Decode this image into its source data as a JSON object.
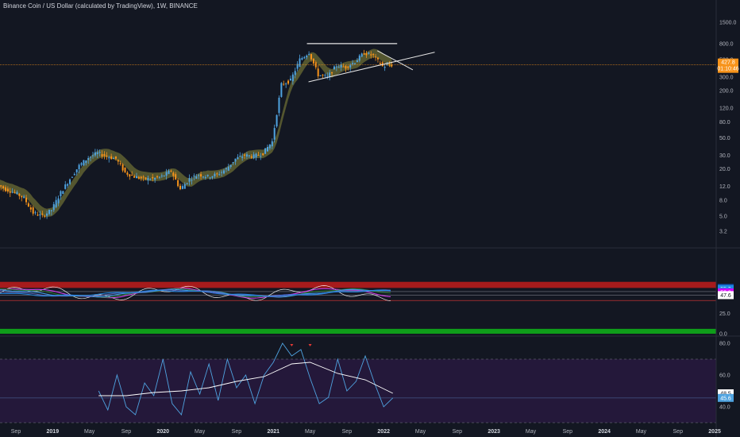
{
  "header": {
    "title": "Binance Coin / US Dollar (calculated by TradingView), 1W, BINANCE"
  },
  "colors": {
    "background": "#131722",
    "candle_up": "#4fa3e0",
    "candle_down": "#f7931a",
    "cloud": "#8a8a3a",
    "price_line": "#f7931a",
    "rsi_band_red": "#b71c1c",
    "rsi_band_green": "#0f9d1a",
    "lower_pane_bg": "#24183a"
  },
  "chart_data": [
    {
      "type": "line",
      "title": "Binance Coin / US Dollar (calculated by TradingView), 1W, BINANCE",
      "scale": "log",
      "ylim": [
        2.6,
        1500
      ],
      "y_ticks": [
        "1500.0",
        "800.0",
        "500.0",
        "300.0",
        "200.0",
        "120.0",
        "80.0",
        "50.0",
        "30.0",
        "20.0",
        "12.0",
        "8.0",
        "5.0",
        "3.2"
      ],
      "price_badges": [
        "427.8",
        "01:10:46"
      ],
      "last_price": 427.8,
      "x_ticks": [
        "Sep",
        "2019",
        "May",
        "Sep",
        "2020",
        "May",
        "Sep",
        "2021",
        "May",
        "Sep",
        "2022",
        "May",
        "Sep",
        "2023",
        "May",
        "Sep",
        "2024",
        "May",
        "Sep",
        "2025"
      ],
      "x_tick_dates": [
        "2018-09",
        "2019-01",
        "2019-05",
        "2019-09",
        "2020-01",
        "2020-05",
        "2020-09",
        "2021-01",
        "2021-05",
        "2021-09",
        "2022-01",
        "2022-05",
        "2022-09",
        "2023-01",
        "2023-05",
        "2023-09",
        "2024-01",
        "2024-05",
        "2024-09",
        "2025-01"
      ],
      "series": [
        {
          "x": [
            "2018-07",
            "2018-08",
            "2018-09",
            "2018-10",
            "2018-11",
            "2018-12",
            "2019-01",
            "2019-02",
            "2019-03",
            "2019-04",
            "2019-05",
            "2019-06",
            "2019-07",
            "2019-08",
            "2019-09",
            "2019-10",
            "2019-11",
            "2019-12",
            "2020-01",
            "2020-02",
            "2020-03",
            "2020-04",
            "2020-05",
            "2020-06",
            "2020-07",
            "2020-08",
            "2020-09",
            "2020-10",
            "2020-11",
            "2020-12",
            "2021-01",
            "2021-02",
            "2021-03",
            "2021-04",
            "2021-05",
            "2021-06",
            "2021-07",
            "2021-08",
            "2021-09",
            "2021-10",
            "2021-11",
            "2021-12",
            "2022-01",
            "2022-02"
          ],
          "values": [
            13,
            11,
            10,
            8.5,
            5.5,
            5,
            6,
            10,
            15,
            22,
            28,
            32,
            29,
            27,
            18,
            16,
            15,
            15,
            16,
            19,
            11,
            15,
            17,
            16,
            17,
            20,
            27,
            30,
            29,
            32,
            45,
            240,
            270,
            500,
            620,
            320,
            300,
            420,
            400,
            470,
            610,
            560,
            410,
            427.8
          ]
        }
      ]
    },
    {
      "type": "line",
      "title": "",
      "ylim": [
        0,
        100
      ],
      "y_ticks": [
        "25.0",
        "0.0"
      ],
      "badges": [
        "56.5",
        "55.2",
        "52.0",
        "50.9",
        "47.6"
      ],
      "badge_values": [
        56.5,
        55.2,
        52.0,
        50.9,
        47.6
      ],
      "band_levels": [
        56.5,
        47.6,
        25.0,
        0.0
      ]
    },
    {
      "type": "line",
      "title": "",
      "ylim": [
        28,
        83
      ],
      "y_ticks": [
        "80.0",
        "60.0",
        "40.0"
      ],
      "badges": [
        "48.5",
        "45.6"
      ],
      "levels": [
        70,
        45.6,
        30
      ],
      "rsi": {
        "x": [
          "2019-06",
          "2019-07",
          "2019-08",
          "2019-09",
          "2019-10",
          "2019-11",
          "2019-12",
          "2020-01",
          "2020-02",
          "2020-03",
          "2020-04",
          "2020-05",
          "2020-06",
          "2020-07",
          "2020-08",
          "2020-09",
          "2020-10",
          "2020-11",
          "2020-12",
          "2021-01",
          "2021-02",
          "2021-03",
          "2021-04",
          "2021-05",
          "2021-06",
          "2021-07",
          "2021-08",
          "2021-09",
          "2021-10",
          "2021-11",
          "2021-12",
          "2022-01",
          "2022-02"
        ],
        "values": [
          50,
          38,
          60,
          40,
          35,
          55,
          47,
          70,
          42,
          35,
          62,
          48,
          67,
          44,
          70,
          52,
          60,
          42,
          60,
          68,
          80,
          72,
          76,
          58,
          42,
          46,
          70,
          50,
          56,
          72,
          55,
          40,
          45.6
        ]
      },
      "rsi_ma": {
        "x": [
          "2019-06",
          "2019-09",
          "2019-12",
          "2020-03",
          "2020-06",
          "2020-09",
          "2020-12",
          "2021-03",
          "2021-05",
          "2021-08",
          "2021-11",
          "2022-02"
        ],
        "values": [
          47,
          47,
          49,
          50,
          52,
          56,
          59,
          67,
          68,
          61,
          57,
          48.5
        ]
      }
    }
  ]
}
